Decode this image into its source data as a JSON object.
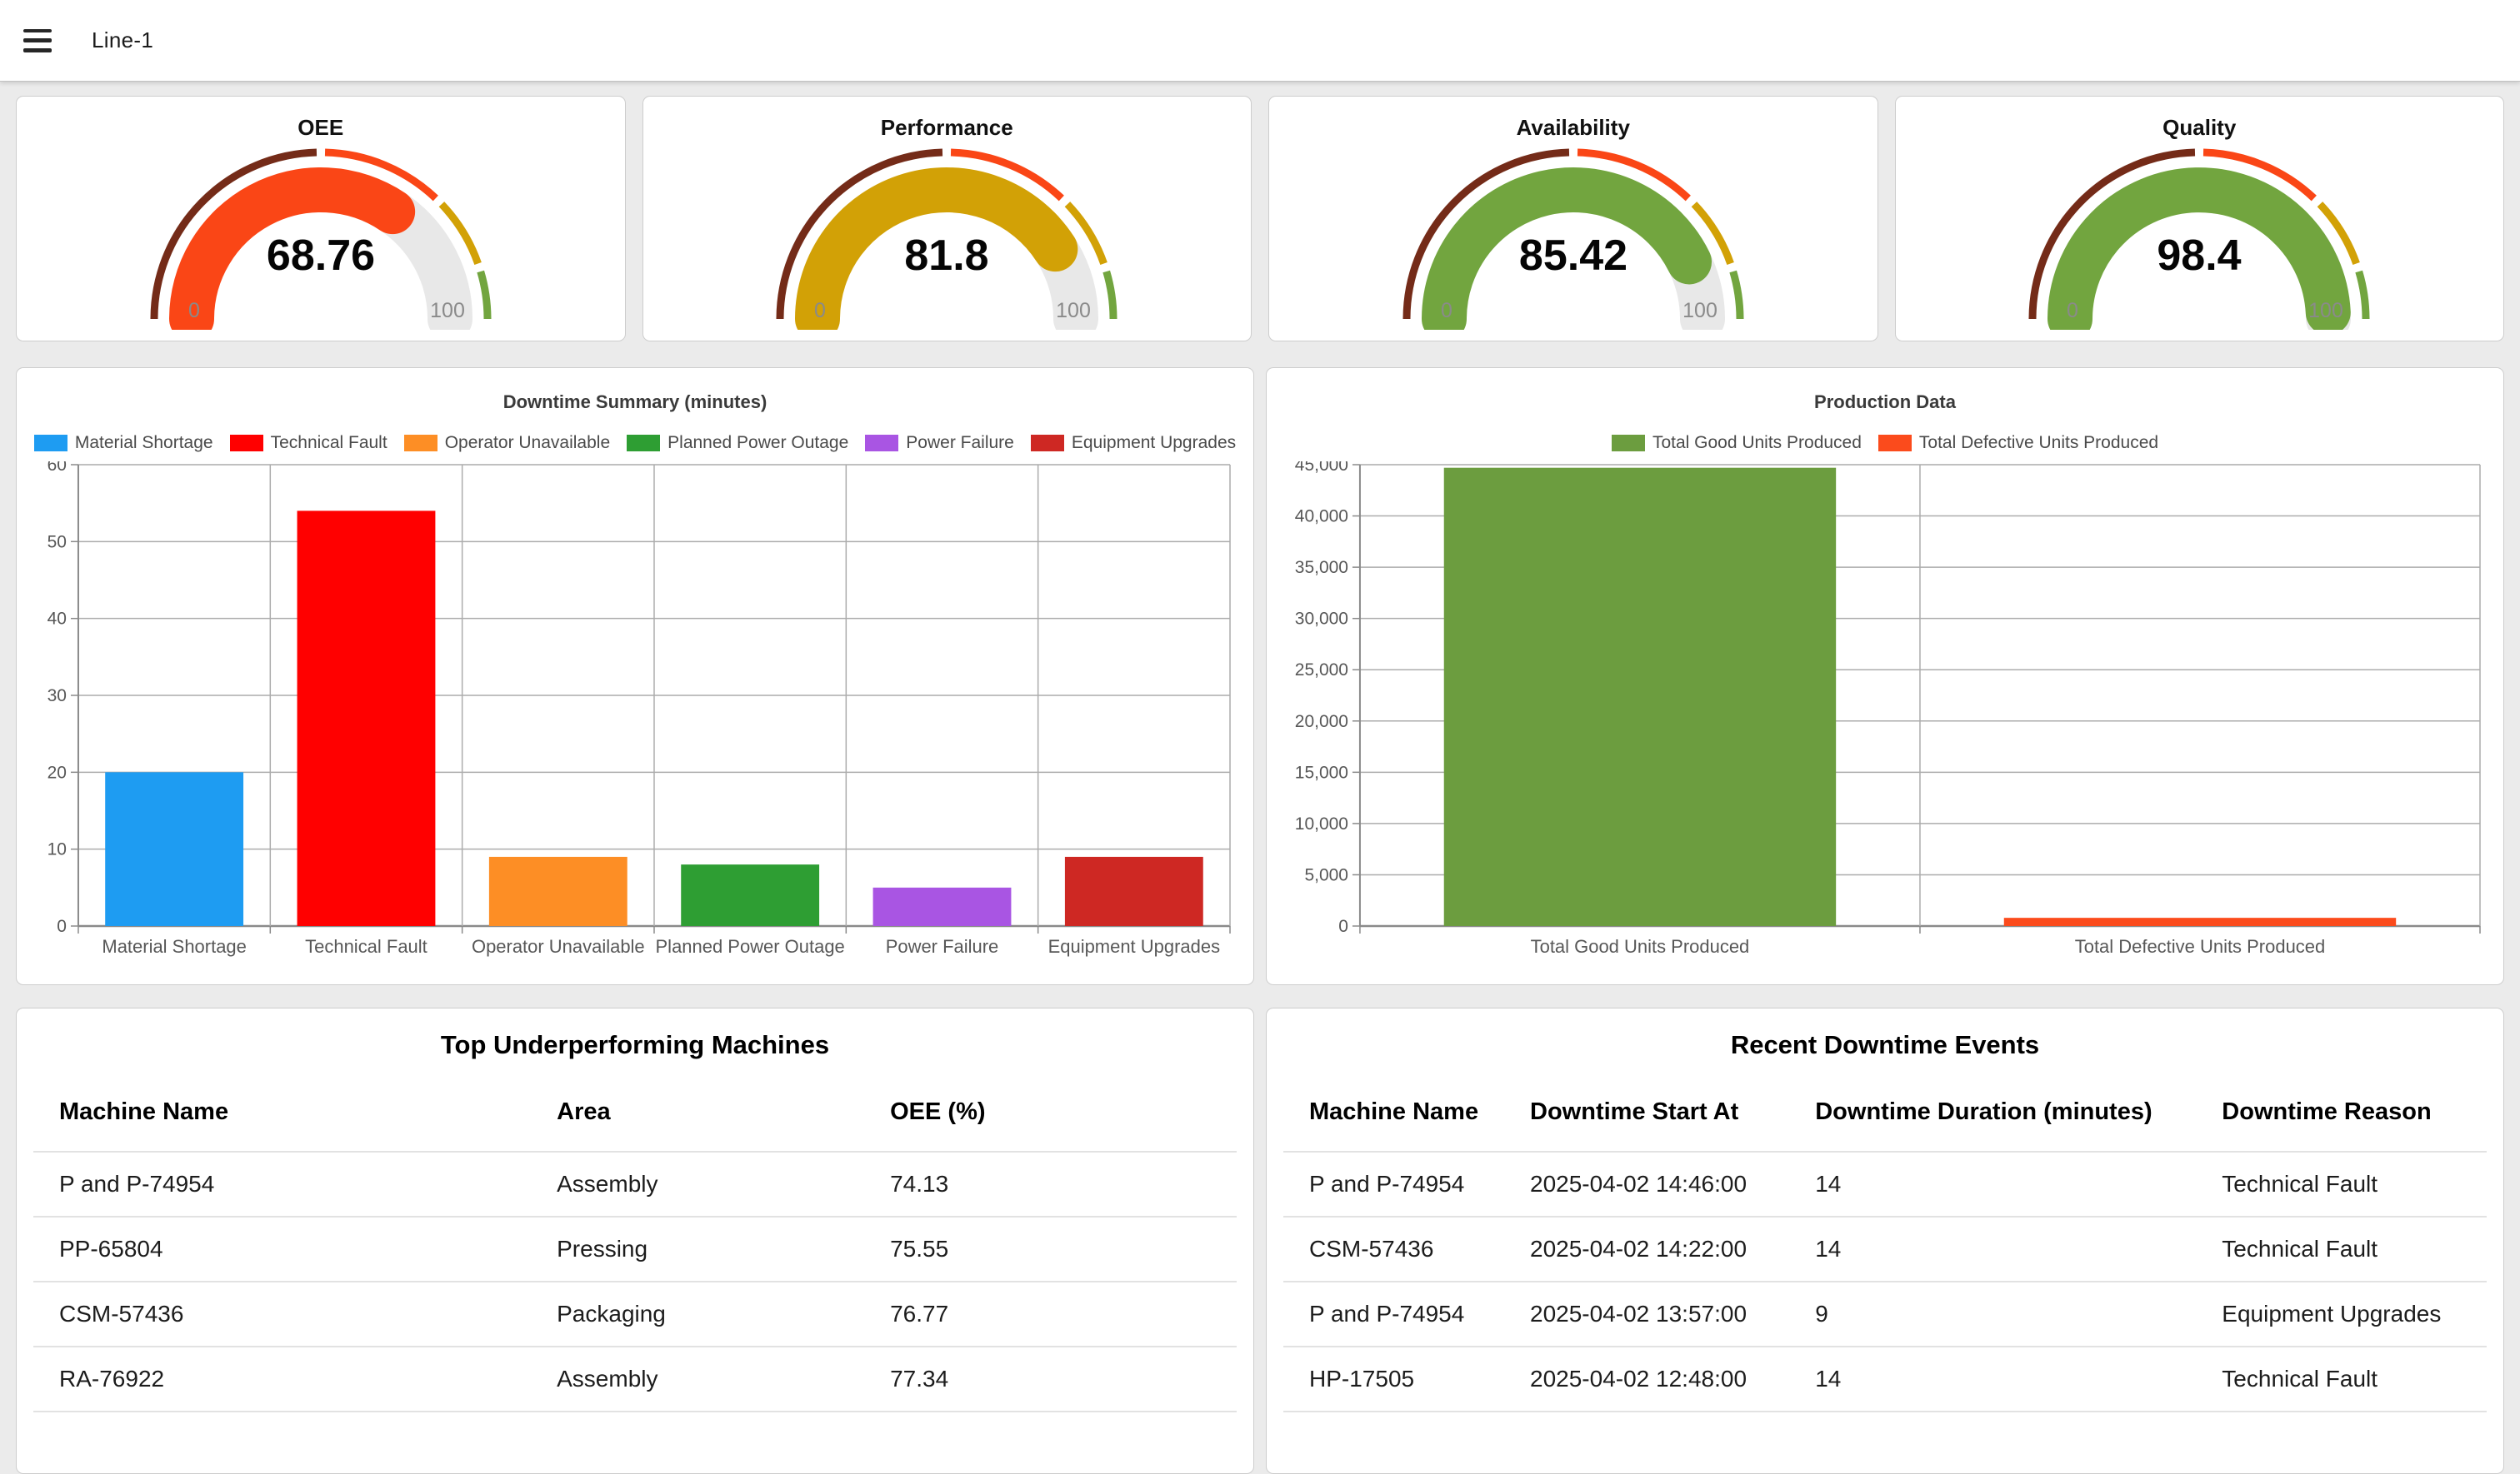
{
  "header": {
    "title": "Line-1"
  },
  "gauges": [
    {
      "title": "OEE",
      "value": 68.76,
      "display": "68.76",
      "color": "#FA4616",
      "min_label": "0",
      "max_label": "100"
    },
    {
      "title": "Performance",
      "value": 81.8,
      "display": "81.8",
      "color": "#D2A106",
      "min_label": "0",
      "max_label": "100"
    },
    {
      "title": "Availability",
      "value": 85.42,
      "display": "85.42",
      "color": "#72A53F",
      "min_label": "0",
      "max_label": "100"
    },
    {
      "title": "Quality",
      "value": 98.4,
      "display": "98.4",
      "color": "#72A53F",
      "min_label": "0",
      "max_label": "100"
    }
  ],
  "gauge_bands": [
    {
      "from": 0,
      "to": 50,
      "color": "#742B18"
    },
    {
      "from": 50,
      "to": 75,
      "color": "#FA4616"
    },
    {
      "from": 75,
      "to": 90,
      "color": "#D2A106"
    },
    {
      "from": 90,
      "to": 100,
      "color": "#72A53F"
    }
  ],
  "gauge_track_color": "#E8E8E8",
  "chart_data": [
    {
      "type": "bar",
      "title": "Downtime Summary (minutes)",
      "categories": [
        "Material Shortage",
        "Technical Fault",
        "Operator Unavailable",
        "Planned Power Outage",
        "Power Failure",
        "Equipment Upgrades"
      ],
      "values": [
        20,
        54,
        9,
        8,
        5,
        9
      ],
      "colors": [
        "#1E9CF2",
        "#FF0000",
        "#FD8E25",
        "#2E9E33",
        "#A955E3",
        "#CE2823"
      ],
      "legend_entries": [
        "Material Shortage",
        "Technical Fault",
        "Operator Unavailable",
        "Planned Power Outage",
        "Power Failure",
        "Equipment Upgrades"
      ],
      "legend_position": "top",
      "grid": true,
      "xlabel": "",
      "ylabel": "",
      "ylim": [
        0,
        60
      ],
      "ytick_step": 10,
      "ytick_labels": [
        "0",
        "10",
        "20",
        "30",
        "40",
        "50",
        "60"
      ]
    },
    {
      "type": "bar",
      "title": "Production Data",
      "categories": [
        "Total Good Units Produced",
        "Total Defective Units Produced"
      ],
      "values": [
        44700,
        800
      ],
      "colors": [
        "#6C9D3F",
        "#FB4B1C"
      ],
      "legend_entries": [
        "Total Good Units Produced",
        "Total Defective Units Produced"
      ],
      "legend_position": "top",
      "grid": true,
      "xlabel": "",
      "ylabel": "",
      "ylim": [
        0,
        45000
      ],
      "ytick_step": 5000,
      "ytick_labels": [
        "0",
        "5,000",
        "10,000",
        "15,000",
        "20,000",
        "25,000",
        "30,000",
        "35,000",
        "40,000",
        "45,000"
      ]
    }
  ],
  "tables": {
    "underperforming": {
      "title": "Top Underperforming Machines",
      "columns": [
        "Machine Name",
        "Area",
        "OEE (%)"
      ],
      "rows": [
        [
          "P and P-74954",
          "Assembly",
          "74.13"
        ],
        [
          "PP-65804",
          "Pressing",
          "75.55"
        ],
        [
          "CSM-57436",
          "Packaging",
          "76.77"
        ],
        [
          "RA-76922",
          "Assembly",
          "77.34"
        ]
      ]
    },
    "downtime_events": {
      "title": "Recent Downtime Events",
      "columns": [
        "Machine Name",
        "Downtime Start At",
        "Downtime Duration (minutes)",
        "Downtime Reason"
      ],
      "rows": [
        [
          "P and P-74954",
          "2025-04-02 14:46:00",
          "14",
          "Technical Fault"
        ],
        [
          "CSM-57436",
          "2025-04-02 14:22:00",
          "14",
          "Technical Fault"
        ],
        [
          "P and P-74954",
          "2025-04-02 13:57:00",
          "9",
          "Equipment Upgrades"
        ],
        [
          "HP-17505",
          "2025-04-02 12:48:00",
          "14",
          "Technical Fault"
        ]
      ]
    }
  }
}
